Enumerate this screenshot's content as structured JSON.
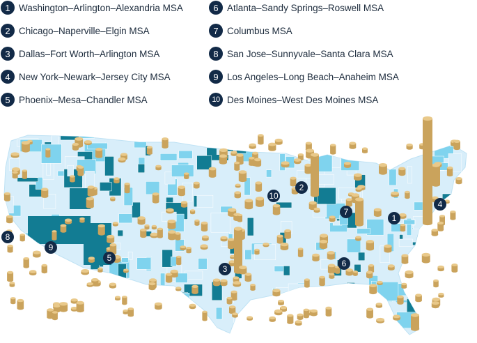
{
  "legend": [
    {
      "num": "1",
      "label": "Washington–Arlington–Alexandria MSA"
    },
    {
      "num": "2",
      "label": "Chicago–Naperville–Elgin MSA"
    },
    {
      "num": "3",
      "label": "Dallas–Fort Worth–Arlington MSA"
    },
    {
      "num": "4",
      "label": "New York–Newark–Jersey City MSA"
    },
    {
      "num": "5",
      "label": "Phoenix–Mesa–Chandler MSA"
    },
    {
      "num": "6",
      "label": "Atlanta–Sandy Springs–Roswell MSA"
    },
    {
      "num": "7",
      "label": "Columbus MSA"
    },
    {
      "num": "8",
      "label": "San Jose–Sunnyvale–Santa Clara MSA"
    },
    {
      "num": "9",
      "label": "Los Angeles–Long Beach–Anaheim MSA"
    },
    {
      "num": "10",
      "label": "Des Moines–West Des Moines MSA"
    }
  ],
  "colors": {
    "badge": "#122a47",
    "map_light": "#d8eefa",
    "map_mid": "#7fd3ee",
    "map_dark": "#127c93",
    "cylinder": "#e9c98a",
    "cylinder_side": "#caa35c"
  },
  "map_pins": [
    "1",
    "2",
    "3",
    "4",
    "5",
    "6",
    "7",
    "8",
    "9",
    "10"
  ]
}
